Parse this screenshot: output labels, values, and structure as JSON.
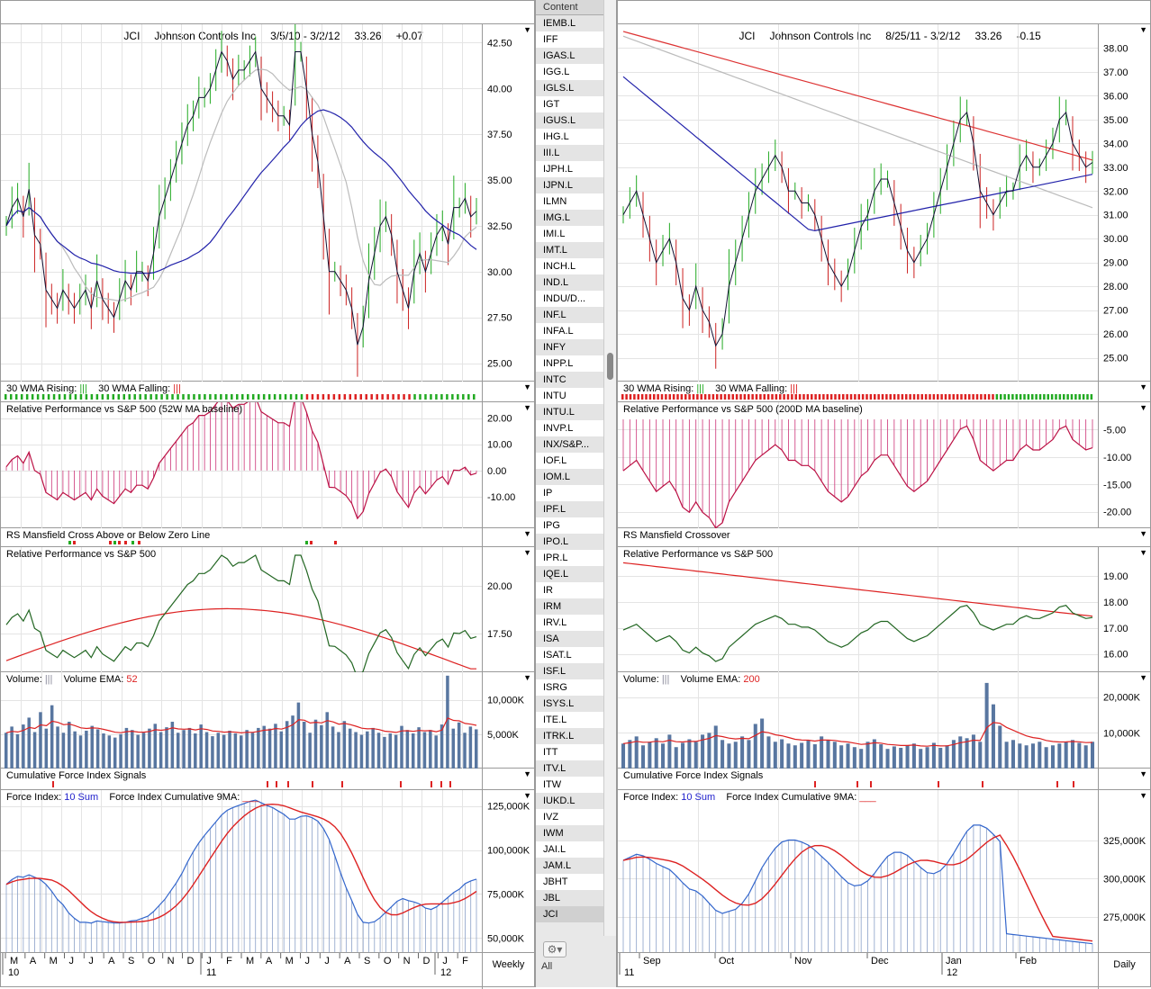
{
  "left_chart": {
    "header": {
      "symbol": "JCI",
      "company": "Johnson Controls Inc",
      "range": "3/5/10 - 3/2/12",
      "price": "33.26",
      "change": "+0.07"
    },
    "price_panel": {
      "ticks": [
        "42.50",
        "40.00",
        "37.50",
        "35.00",
        "32.50",
        "30.00",
        "27.50",
        "25.00"
      ]
    },
    "wma_panel": {
      "rising_label": "30 WMA Rising:",
      "rising_glyph": "|||",
      "falling_label": "30 WMA Falling:",
      "falling_glyph": "|||"
    },
    "relperf_ma_panel": {
      "label": "Relative Performance vs S&P 500 (52W MA baseline)",
      "ticks": [
        "20.00",
        "10.00",
        "0.00",
        "-10.00"
      ]
    },
    "mansfield_panel": {
      "label": "RS Mansfield Cross Above or Below Zero Line"
    },
    "relperf_panel": {
      "label": "Relative Performance vs S&P 500",
      "ticks": [
        "20.00",
        "17.50"
      ]
    },
    "volume_panel": {
      "label": "Volume:",
      "glyph": "|||",
      "ema_label": "Volume EMA:",
      "ema_value": "52",
      "ticks": [
        "10,000K",
        "5,000K"
      ]
    },
    "cfi_signals_panel": {
      "label": "Cumulative Force Index Signals"
    },
    "force_panel": {
      "label": "Force Index:",
      "sum_label": "10 Sum",
      "cum_label": "Force Index Cumulative 9MA:",
      "ticks": [
        "125,000K",
        "100,000K",
        "75,000K",
        "50,000K"
      ]
    },
    "x_axis": {
      "months": [
        "M",
        "A",
        "M",
        "J",
        "J",
        "A",
        "S",
        "O",
        "N",
        "D",
        "J",
        "F",
        "M",
        "A",
        "M",
        "J",
        "J",
        "A",
        "S",
        "O",
        "N",
        "D",
        "J",
        "F"
      ],
      "year_labels": [
        "10",
        "11",
        "12"
      ],
      "period": "Weekly"
    }
  },
  "right_chart": {
    "header": {
      "symbol": "JCI",
      "company": "Johnson Controls Inc",
      "range": "8/25/11 - 3/2/12",
      "price": "33.26",
      "change": "-0.15"
    },
    "price_panel": {
      "ticks": [
        "38.00",
        "37.00",
        "36.00",
        "35.00",
        "34.00",
        "33.00",
        "32.00",
        "31.00",
        "30.00",
        "29.00",
        "28.00",
        "27.00",
        "26.00",
        "25.00"
      ]
    },
    "wma_panel": {
      "rising_label": "30 WMA Rising:",
      "rising_glyph": "|||",
      "falling_label": "30 WMA Falling:",
      "falling_glyph": "|||"
    },
    "relperf_ma_panel": {
      "label": "Relative Performance vs S&P 500 (200D MA baseline)",
      "ticks": [
        "-5.00",
        "-10.00",
        "-15.00",
        "-20.00"
      ]
    },
    "mansfield_panel": {
      "label": "RS Mansfield Crossover"
    },
    "relperf_panel": {
      "label": "Relative Performance vs S&P 500",
      "ticks": [
        "19.00",
        "18.00",
        "17.00",
        "16.00"
      ]
    },
    "volume_panel": {
      "label": "Volume:",
      "glyph": "|||",
      "ema_label": "Volume EMA:",
      "ema_value": "200",
      "ticks": [
        "20,000K",
        "10,000K"
      ]
    },
    "cfi_signals_panel": {
      "label": "Cumulative Force Index Signals"
    },
    "force_panel": {
      "label": "Force Index:",
      "sum_label": "10 Sum",
      "cum_label": "Force Index Cumulative 9MA:",
      "ticks": [
        "325,000K",
        "300,000K",
        "275,000K"
      ]
    },
    "x_axis": {
      "months": [
        "Sep",
        "Oct",
        "Nov",
        "Dec",
        "Jan",
        "Feb"
      ],
      "year_labels": [
        "11",
        "12"
      ],
      "period": "Daily"
    }
  },
  "symbol_list": {
    "header": "Content",
    "items": [
      "IEMB.L",
      "IFF",
      "IGAS.L",
      "IGG.L",
      "IGLS.L",
      "IGT",
      "IGUS.L",
      "IHG.L",
      "III.L",
      "IJPH.L",
      "IJPN.L",
      "ILMN",
      "IMG.L",
      "IMI.L",
      "IMT.L",
      "INCH.L",
      "IND.L",
      "INDU/D...",
      "INF.L",
      "INFA.L",
      "INFY",
      "INPP.L",
      "INTC",
      "INTU",
      "INTU.L",
      "INVP.L",
      "INX/S&P...",
      "IOF.L",
      "IOM.L",
      "IP",
      "IPF.L",
      "IPG",
      "IPO.L",
      "IPR.L",
      "IQE.L",
      "IR",
      "IRM",
      "IRV.L",
      "ISA",
      "ISAT.L",
      "ISF.L",
      "ISRG",
      "ISYS.L",
      "ITE.L",
      "ITRK.L",
      "ITT",
      "ITV.L",
      "ITW",
      "IUKD.L",
      "IVZ",
      "IWM",
      "JAI.L",
      "JAM.L",
      "JBHT",
      "JBL",
      "JCI"
    ],
    "selected": "JCI",
    "filter_label": "All"
  },
  "chart_data": [
    {
      "type": "line",
      "title": "JCI Johnson Controls Inc weekly price",
      "x": "weeks 3/5/10 - 3/2/12",
      "ylim": [
        24,
        43.5
      ],
      "series": [
        {
          "values": [
            32.5,
            33.5,
            34,
            33,
            34.5,
            32,
            31.5,
            29,
            28.5,
            28,
            29,
            28.5,
            28,
            28.5,
            29,
            28,
            29.5,
            28.5,
            28,
            27.5,
            28.5,
            29.5,
            29,
            30,
            30,
            29.5,
            31,
            33,
            34,
            35,
            36,
            37,
            38,
            38.5,
            39.5,
            39.5,
            40,
            41,
            42,
            41.5,
            40.5,
            41,
            41,
            41.5,
            42,
            40,
            39.5,
            39,
            38.5,
            38.5,
            38,
            42,
            42,
            40,
            37.5,
            36,
            33,
            30,
            30,
            29.5,
            29,
            28,
            26,
            27,
            29.5,
            31,
            32.5,
            33,
            32,
            30,
            29,
            28,
            30,
            31,
            30,
            31,
            32,
            32.5,
            31.5,
            33.5,
            33.5,
            34,
            33,
            33.3
          ]
        }
      ]
    },
    {
      "type": "line",
      "title": "JCI Johnson Controls Inc daily price",
      "x": "days 8/25/11 - 3/2/12",
      "ylim": [
        24,
        39
      ],
      "series": [
        {
          "values": [
            31,
            31.5,
            32,
            31,
            30,
            29,
            29.5,
            30,
            29,
            27.5,
            27,
            28,
            27,
            26.5,
            25.5,
            26,
            28,
            29,
            30,
            31,
            32,
            32.5,
            33,
            33.5,
            33,
            32,
            32,
            31.5,
            31.5,
            31,
            30,
            29,
            28.5,
            28,
            28.5,
            29.5,
            30.5,
            31,
            32,
            32.5,
            32.5,
            31.5,
            30.5,
            29.5,
            29,
            29.5,
            30,
            31,
            32,
            33,
            34,
            35,
            35.3,
            34,
            32,
            31.5,
            31,
            31.5,
            32,
            32,
            33,
            33.5,
            33,
            33,
            33.5,
            34,
            35,
            35.3,
            34,
            33.5,
            33,
            33.2
          ]
        }
      ]
    },
    {
      "type": "bar",
      "title": "Volume weekly",
      "ylim": [
        0,
        14000
      ],
      "series": [
        {
          "values": [
            5200,
            6100,
            5000,
            6400,
            7400,
            5300,
            8200,
            5800,
            9200,
            6100,
            5200,
            6800,
            5400,
            4800,
            5500,
            6200,
            5700,
            5100,
            4800,
            4500,
            5000,
            5900,
            5600,
            4900,
            5200,
            5800,
            6500,
            5300,
            6000,
            6800,
            5200,
            5600,
            5900,
            5100,
            6400,
            5300,
            4700,
            5200,
            4900,
            5500,
            5100,
            4800,
            5600,
            5200,
            5900,
            6200,
            5800,
            6500,
            5400,
            6900,
            7700,
            9600,
            6800,
            5200,
            7100,
            6300,
            8200,
            6100,
            5300,
            6900,
            5800,
            5300,
            4900,
            5400,
            5900,
            5200,
            4600,
            5100,
            4900,
            6200,
            5600,
            5100,
            6000,
            5300,
            5600,
            4800,
            6400,
            13500,
            5800,
            6700,
            5200,
            6100,
            5700
          ]
        }
      ]
    },
    {
      "type": "bar",
      "title": "Volume daily",
      "ylim": [
        0,
        25000
      ],
      "series": [
        {
          "values": [
            7000,
            8000,
            9000,
            6500,
            7500,
            8500,
            7000,
            9500,
            6000,
            7200,
            8200,
            7500,
            9500,
            10000,
            12000,
            8000,
            7000,
            7500,
            9000,
            8000,
            12500,
            14000,
            9000,
            7500,
            8200,
            7000,
            6500,
            7200,
            7800,
            6800,
            9000,
            8000,
            7500,
            6500,
            7000,
            6000,
            5500,
            7500,
            8200,
            6800,
            5500,
            6200,
            5800,
            6500,
            7000,
            5500,
            6000,
            7200,
            5800,
            6500,
            8000,
            9000,
            8500,
            9500,
            7500,
            24000,
            18000,
            12000,
            7500,
            8000,
            7000,
            6500,
            7000,
            7500,
            6000,
            6500,
            7000,
            7500,
            8000,
            7200,
            6500,
            7500
          ]
        }
      ]
    }
  ]
}
